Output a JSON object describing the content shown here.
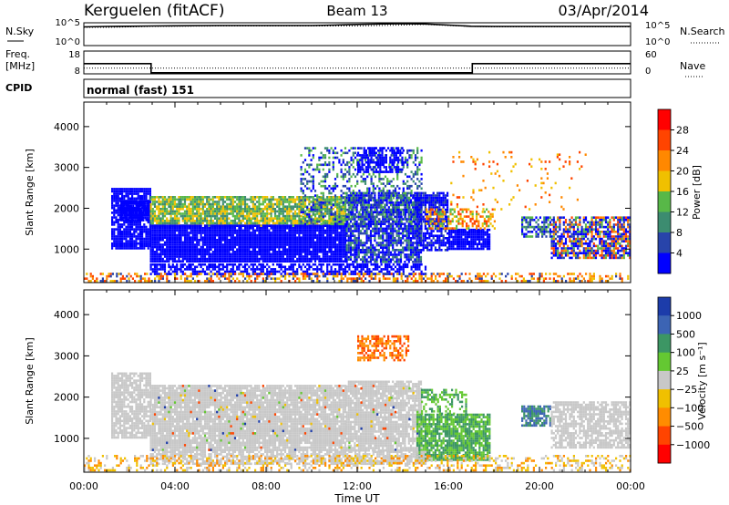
{
  "header": {
    "station": "Kerguelen (fitACF)",
    "beam": "Beam 13",
    "date": "03/Apr/2014"
  },
  "chart_data": [
    {
      "type": "line",
      "panel": "noise",
      "left_label": "N.Sky",
      "right_label": "N.Search",
      "left_ticks": [
        "10^5",
        "10^0"
      ],
      "right_ticks": [
        "10^5",
        "10^0"
      ],
      "x_hours": [
        0,
        1,
        2,
        3,
        4,
        6,
        8,
        10,
        11,
        12,
        13,
        14,
        15,
        16,
        17,
        18,
        20,
        22,
        24
      ],
      "series": [
        {
          "style": "solid",
          "values": [
            0.82,
            0.84,
            0.85,
            0.86,
            0.87,
            0.88,
            0.88,
            0.88,
            0.9,
            0.93,
            0.95,
            0.96,
            0.95,
            0.9,
            0.85,
            0.84,
            0.84,
            0.84,
            0.84
          ]
        },
        {
          "style": "dotted",
          "values": [
            0.8,
            0.8,
            0.82,
            0.84,
            0.85,
            0.86,
            0.86,
            0.86,
            0.86,
            0.86,
            0.88,
            0.9,
            0.93,
            0.88,
            0.84,
            0.82,
            0.82,
            0.82,
            0.82
          ]
        }
      ]
    },
    {
      "type": "line",
      "panel": "frequency",
      "left_label_1": "Freq.",
      "left_label_2": "[MHz]",
      "right_label": "Nave",
      "left_ticks": [
        "18",
        "8"
      ],
      "right_ticks": [
        "60",
        "0"
      ],
      "freq_segments": [
        {
          "x0": 0,
          "x1": 2.95,
          "value": 12.5
        },
        {
          "x0": 2.95,
          "x1": 17.05,
          "value": 8.5
        },
        {
          "x0": 17.05,
          "x1": 24,
          "value": 12.5
        }
      ],
      "nave_dotted": 15
    },
    {
      "type": "table",
      "panel": "cpid",
      "label": "CPID",
      "value": "normal (fast) 151"
    },
    {
      "type": "heatmap",
      "panel": "power",
      "ylabel": "Slant Range [km]",
      "xlim": [
        0,
        24
      ],
      "ylim": [
        180,
        4600
      ],
      "y_ticks": [
        1000,
        2000,
        3000,
        4000
      ],
      "colorbar_label": "Power [dB]",
      "colorbar_ticks": [
        "28",
        "24",
        "20",
        "16",
        "12",
        "8",
        "4"
      ],
      "colorbar_colors": [
        "#ff0000",
        "#ff4400",
        "#ff8800",
        "#f0c000",
        "#58b848",
        "#3c8c70",
        "#2844aa",
        "#0000ff"
      ],
      "regions": [
        {
          "x0": 1.2,
          "x1": 2.9,
          "y0": 1000,
          "y1": 2500,
          "levels": [
            8,
            9,
            10
          ],
          "density": 0.85
        },
        {
          "x0": 1.6,
          "x1": 2.9,
          "y0": 1700,
          "y1": 2200,
          "levels": [
            9,
            10
          ],
          "density": 0.95
        },
        {
          "x0": 2.9,
          "x1": 11.5,
          "y0": 1600,
          "y1": 2300,
          "levels": [
            3,
            4,
            5
          ],
          "density": 0.85
        },
        {
          "x0": 2.9,
          "x1": 11.5,
          "y0": 700,
          "y1": 1600,
          "levels": [
            7,
            8,
            9,
            10
          ],
          "density": 0.95
        },
        {
          "x0": 11.5,
          "x1": 14.8,
          "y0": 700,
          "y1": 2400,
          "levels": [
            5,
            6,
            7,
            8
          ],
          "density": 0.8
        },
        {
          "x0": 9.5,
          "x1": 14.8,
          "y0": 1600,
          "y1": 3500,
          "levels": [
            4,
            5,
            6,
            7
          ],
          "density": 0.35
        },
        {
          "x0": 12.0,
          "x1": 14.0,
          "y0": 2900,
          "y1": 3500,
          "levels": [
            7,
            8,
            9
          ],
          "density": 0.6
        },
        {
          "x0": 14.6,
          "x1": 16.0,
          "y0": 1000,
          "y1": 2400,
          "levels": [
            6,
            7,
            8,
            9
          ],
          "density": 0.75
        },
        {
          "x0": 16.0,
          "x1": 17.8,
          "y0": 1000,
          "y1": 1500,
          "levels": [
            8,
            9,
            10
          ],
          "density": 0.9
        },
        {
          "x0": 15.0,
          "x1": 18.0,
          "y0": 1500,
          "y1": 2000,
          "levels": [
            1,
            2,
            3,
            4
          ],
          "density": 0.5
        },
        {
          "x0": 19.2,
          "x1": 20.5,
          "y0": 1300,
          "y1": 1800,
          "levels": [
            4,
            5,
            6,
            7
          ],
          "density": 0.7
        },
        {
          "x0": 20.5,
          "x1": 24.0,
          "y0": 800,
          "y1": 1800,
          "levels": [
            1,
            2,
            4,
            6,
            7,
            8
          ],
          "density": 0.75
        },
        {
          "x0": 2.9,
          "x1": 15.0,
          "y0": 400,
          "y1": 650,
          "levels": [
            8,
            9,
            10
          ],
          "density": 0.6
        },
        {
          "x0": 0.0,
          "x1": 24.0,
          "y0": 200,
          "y1": 420,
          "levels": [
            1,
            2,
            3,
            6
          ],
          "density": 0.45
        },
        {
          "x0": 16.0,
          "x1": 22.0,
          "y0": 2000,
          "y1": 3400,
          "levels": [
            1,
            2,
            3
          ],
          "density": 0.06
        }
      ]
    },
    {
      "type": "heatmap",
      "panel": "velocity",
      "ylabel": "Slant Range [km]",
      "xlabel": "Time UT",
      "xlim": [
        0,
        24
      ],
      "ylim": [
        180,
        4600
      ],
      "x_ticks": [
        "00:00",
        "04:00",
        "08:00",
        "12:00",
        "16:00",
        "20:00",
        "00:00"
      ],
      "y_ticks": [
        1000,
        2000,
        3000,
        4000
      ],
      "colorbar_label": "Velocity [m s⁻¹]",
      "colorbar_ticks": [
        "1000",
        "500",
        "100",
        "25",
        "−25",
        "−100",
        "−500",
        "−1000"
      ],
      "colorbar_colors": [
        "#1c3caa",
        "#3c64b4",
        "#3c9664",
        "#64c832",
        "#c8c8c8",
        "#f0c000",
        "#ff8c00",
        "#ff4400",
        "#ff0000"
      ],
      "regions": [
        {
          "x0": 1.2,
          "x1": 2.9,
          "y0": 1000,
          "y1": 2600,
          "levels": [
            4
          ],
          "density": 0.8
        },
        {
          "x0": 2.9,
          "x1": 11.5,
          "y0": 700,
          "y1": 2300,
          "levels": [
            4
          ],
          "density": 0.92
        },
        {
          "x0": 11.5,
          "x1": 14.8,
          "y0": 700,
          "y1": 2400,
          "levels": [
            4
          ],
          "density": 0.85
        },
        {
          "x0": 2.9,
          "x1": 14.8,
          "y0": 700,
          "y1": 2300,
          "levels": [
            0,
            7,
            3,
            5
          ],
          "density": 0.04
        },
        {
          "x0": 12.0,
          "x1": 14.2,
          "y0": 2900,
          "y1": 3500,
          "levels": [
            6,
            7
          ],
          "density": 0.6
        },
        {
          "x0": 14.6,
          "x1": 17.8,
          "y0": 500,
          "y1": 1600,
          "levels": [
            3,
            2
          ],
          "density": 0.85
        },
        {
          "x0": 14.8,
          "x1": 16.8,
          "y0": 1600,
          "y1": 2200,
          "levels": [
            2,
            3
          ],
          "density": 0.45
        },
        {
          "x0": 19.2,
          "x1": 20.5,
          "y0": 1300,
          "y1": 1800,
          "levels": [
            2,
            1
          ],
          "density": 0.8
        },
        {
          "x0": 20.5,
          "x1": 24.0,
          "y0": 800,
          "y1": 1900,
          "levels": [
            4
          ],
          "density": 0.75
        },
        {
          "x0": 2.9,
          "x1": 15.0,
          "y0": 400,
          "y1": 700,
          "levels": [
            4
          ],
          "density": 0.7
        },
        {
          "x0": 0.0,
          "x1": 24.0,
          "y0": 200,
          "y1": 600,
          "levels": [
            5,
            6,
            4
          ],
          "density": 0.35
        }
      ]
    }
  ]
}
